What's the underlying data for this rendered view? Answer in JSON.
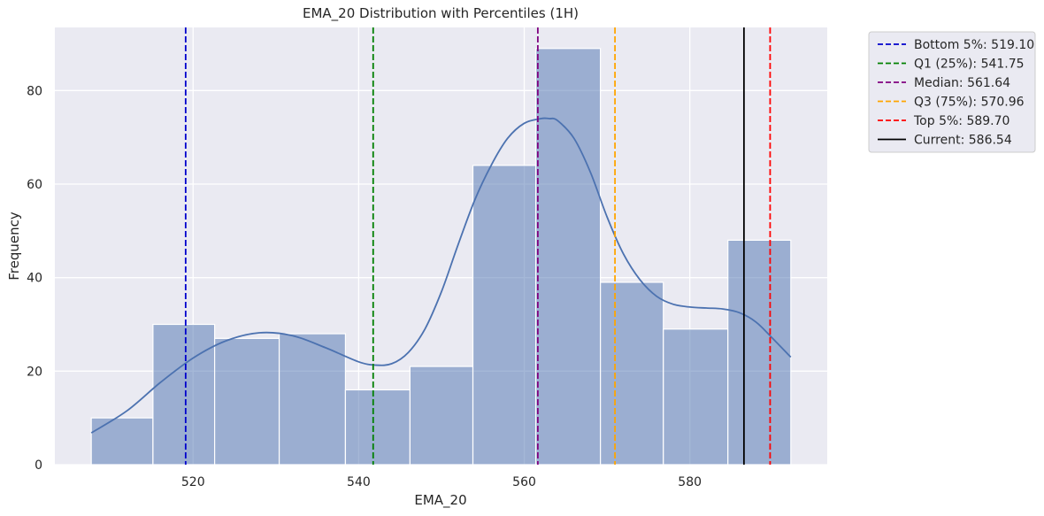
{
  "chart_data": {
    "type": "histogram",
    "title": "EMA_20 Distribution with Percentiles (1H)",
    "xlabel": "EMA_20",
    "ylabel": "Frequency",
    "xlim": [
      503.3,
      596.6
    ],
    "ylim": [
      0,
      93.5
    ],
    "xticks": [
      520,
      540,
      560,
      580
    ],
    "yticks": [
      0,
      20,
      40,
      60,
      80
    ],
    "grid": true,
    "legend_position": "outside-top-right",
    "bar_color": "#4c72b0",
    "background_color": "#eaeaf2",
    "bins": [
      {
        "x0": 507.7,
        "x1": 515.15,
        "count": 10
      },
      {
        "x0": 515.15,
        "x1": 522.6,
        "count": 30
      },
      {
        "x0": 522.6,
        "x1": 530.4,
        "count": 27
      },
      {
        "x0": 530.4,
        "x1": 538.4,
        "count": 28
      },
      {
        "x0": 538.4,
        "x1": 546.2,
        "count": 16
      },
      {
        "x0": 546.2,
        "x1": 553.8,
        "count": 21
      },
      {
        "x0": 553.8,
        "x1": 561.4,
        "count": 64
      },
      {
        "x0": 561.4,
        "x1": 569.2,
        "count": 89
      },
      {
        "x0": 569.2,
        "x1": 576.8,
        "count": 39
      },
      {
        "x0": 576.8,
        "x1": 584.6,
        "count": 29
      },
      {
        "x0": 584.6,
        "x1": 592.2,
        "count": 48
      }
    ],
    "kde": {
      "x": [
        507.7,
        512,
        516,
        520,
        524,
        528,
        532,
        536,
        540,
        542,
        544,
        546,
        548,
        550,
        552,
        554,
        556,
        558,
        560,
        562,
        563,
        564,
        566,
        568,
        570,
        572,
        574,
        576,
        578,
        580,
        582,
        584,
        586,
        588,
        590,
        592.2
      ],
      "y": [
        6.8,
        11.5,
        17.5,
        22.8,
        26.5,
        28.2,
        27.6,
        25,
        22,
        21.3,
        21.6,
        24,
        29,
        37,
        47,
        56.5,
        64,
        69.8,
        73,
        74,
        74,
        73.6,
        69.8,
        62.5,
        53,
        45,
        39.5,
        36,
        34.3,
        33.7,
        33.5,
        33.3,
        32.5,
        30.5,
        27,
        23
      ]
    },
    "lines": [
      {
        "label": "Bottom 5%: 519.10",
        "value": 519.1,
        "color": "#0000cc",
        "dashed": true
      },
      {
        "label": "Q1 (25%): 541.75",
        "value": 541.75,
        "color": "#008000",
        "dashed": true
      },
      {
        "label": "Median: 561.64",
        "value": 561.64,
        "color": "#800080",
        "dashed": true
      },
      {
        "label": "Q3 (75%): 570.96",
        "value": 570.96,
        "color": "#ffa500",
        "dashed": true
      },
      {
        "label": "Top 5%: 589.70",
        "value": 589.7,
        "color": "#ff0000",
        "dashed": true
      },
      {
        "label": "Current: 586.54",
        "value": 586.54,
        "color": "#000000",
        "dashed": false
      }
    ]
  }
}
